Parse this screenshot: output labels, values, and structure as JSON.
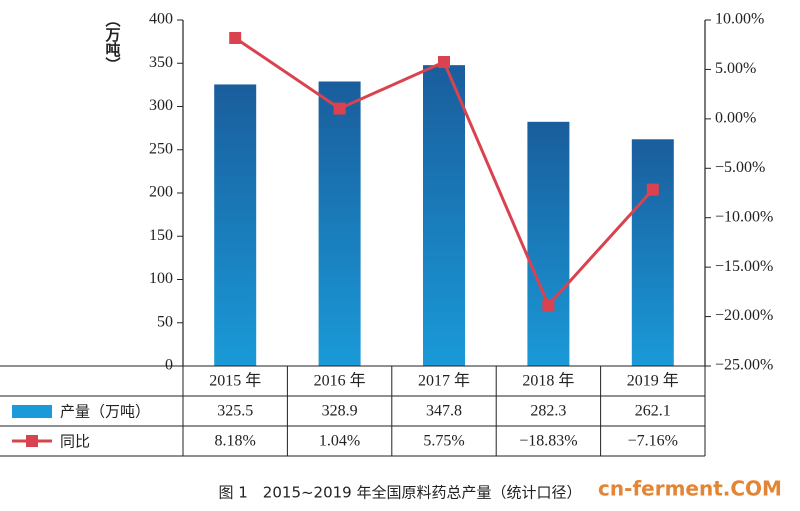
{
  "chart_data": {
    "type": "bar-line",
    "caption": "图 1　2015~2019 年全国原料药总产量（统计口径）",
    "y_label": "（万吨）",
    "watermark": "cn-ferment.COM",
    "categories": [
      "2015 年",
      "2016 年",
      "2017 年",
      "2018 年",
      "2019 年"
    ],
    "series": [
      {
        "name": "产量（万吨）",
        "type": "bar",
        "color": "#1a9ad8",
        "values": [
          325.5,
          328.9,
          347.8,
          282.3,
          262.1
        ]
      },
      {
        "name": "同比",
        "type": "line",
        "axis": "y2",
        "color": "#d9434f",
        "values": [
          8.18,
          1.04,
          5.75,
          -18.83,
          -7.16
        ],
        "value_labels": [
          "8.18%",
          "1.04%",
          "5.75%",
          "−18.83%",
          "−7.16%"
        ]
      }
    ],
    "ylim": [
      0,
      400
    ],
    "yticks": [
      0,
      50,
      100,
      150,
      200,
      250,
      300,
      350,
      400
    ],
    "y2lim": [
      -25,
      10
    ],
    "y2ticks": [
      {
        "value": 10,
        "label": "10.00%"
      },
      {
        "value": 5,
        "label": "5.00%"
      },
      {
        "value": 0,
        "label": "0.00%"
      },
      {
        "value": -5,
        "label": "−5.00%"
      },
      {
        "value": -10,
        "label": "−10.00%"
      },
      {
        "value": -15,
        "label": "−15.00%"
      },
      {
        "value": -20,
        "label": "−20.00%"
      },
      {
        "value": -25,
        "label": "−25.00%"
      }
    ]
  }
}
